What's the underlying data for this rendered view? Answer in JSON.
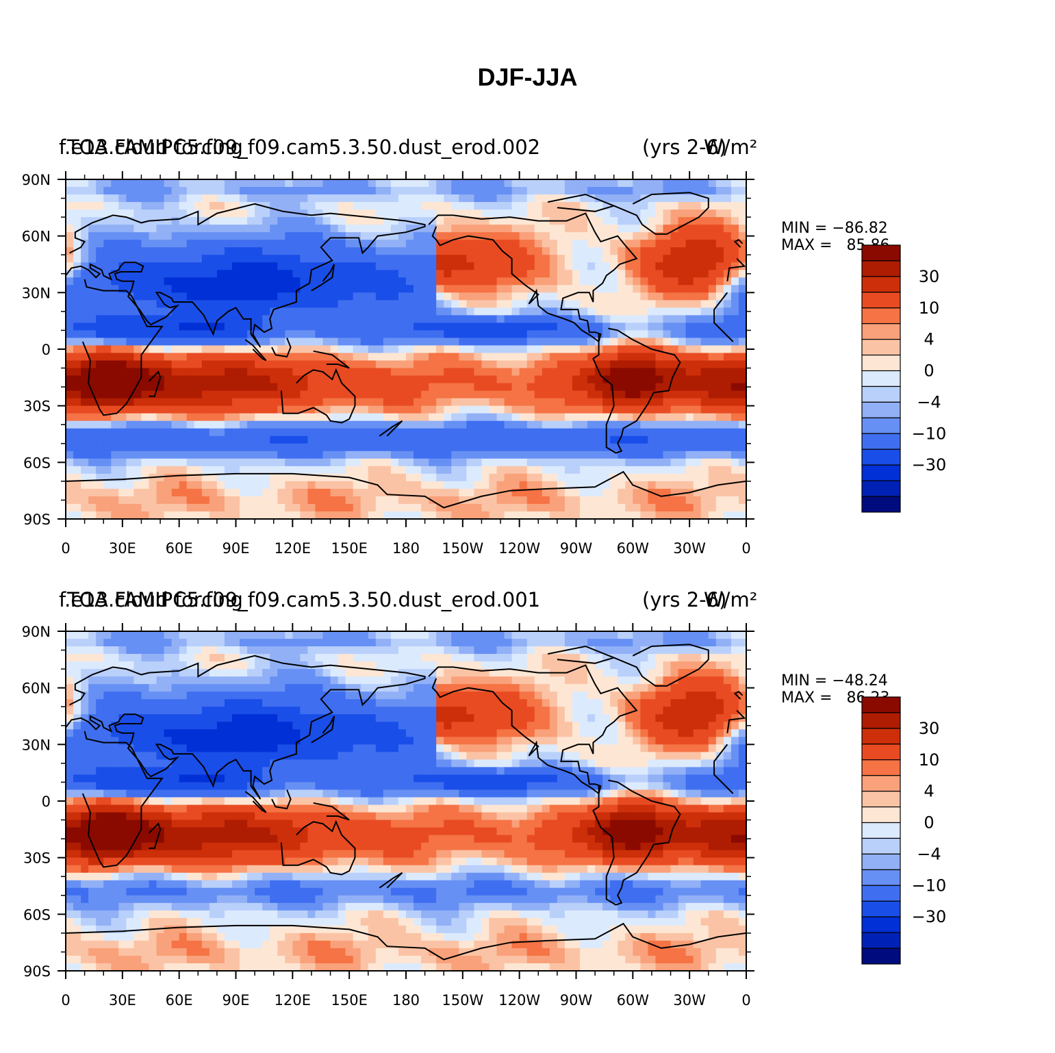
{
  "main_title": "DJF-JJA",
  "colors": {
    "levels": [
      "#000c7d",
      "#0021b5",
      "#0030d6",
      "#1a4ee8",
      "#3f6ff0",
      "#6790f4",
      "#91b0f6",
      "#b9d0fb",
      "#dceafd",
      "#fde6d4",
      "#fbc3a5",
      "#f9a17a",
      "#f57345",
      "#e84b22",
      "#cc2f09",
      "#ae1c02",
      "#8a0a00"
    ],
    "coast": "#000000",
    "axis": "#000000"
  },
  "chart_data": [
    {
      "type": "heatmap",
      "case_label": "f.e13.FAMIPC5.f09_f09.cam5.3.50.dust_erod.002",
      "variable_label": "TOA cloud forcing",
      "units_label": "W/m²",
      "years_label": "(yrs 2-6)",
      "overlap_text_left": "f.e13.FAMIPC5.f09_f09.cam5.3.50.dust_erod.002",
      "overlap_text_over": "TOA cloud forcing",
      "overlap_text_right": "(yrs",
      "overlap_text_units": "W/m",
      "overlap_text_units_sup": "2",
      "overlap_text_close": "6)",
      "min_label": "MIN = −86.82",
      "max_label": "MAX =   85.86",
      "levels": [
        -50,
        -40,
        -30,
        -20,
        -10,
        -6,
        -4,
        -2,
        0,
        2,
        4,
        6,
        10,
        20,
        30,
        40
      ],
      "colorbar_labels": [
        "30",
        "10",
        "4",
        "0",
        "−4",
        "−10",
        "−30"
      ],
      "x_ticks": [
        "0",
        "30E",
        "60E",
        "90E",
        "120E",
        "150E",
        "180",
        "150W",
        "120W",
        "90W",
        "60W",
        "30W",
        "0"
      ],
      "y_ticks": [
        "90N",
        "60N",
        "30N",
        "0",
        "30S",
        "60S",
        "90S"
      ],
      "xlim": [
        0,
        360
      ],
      "ylim": [
        -90,
        90
      ]
    },
    {
      "type": "heatmap",
      "case_label": "f.e13.FAMIPC5.f09_f09.cam5.3.50.dust_erod.001",
      "variable_label": "TOA cloud forcing",
      "units_label": "W/m²",
      "years_label": "(yrs 2-6)",
      "overlap_text_left": "f.e13.FAMIPC5.f09_f09.cam5.3.50.dust_erod.001",
      "overlap_text_over": "TOA cloud forcing",
      "overlap_text_right": "(yrs",
      "overlap_text_units": "W/m",
      "overlap_text_units_sup": "2",
      "overlap_text_close": "6)",
      "min_label": "MIN = −48.24",
      "max_label": "MAX =   86.23",
      "levels": [
        -50,
        -40,
        -30,
        -20,
        -10,
        -6,
        -4,
        -2,
        0,
        2,
        4,
        6,
        10,
        20,
        30,
        40
      ],
      "colorbar_labels": [
        "30",
        "10",
        "4",
        "0",
        "−4",
        "−10",
        "−30"
      ],
      "x_ticks": [
        "0",
        "30E",
        "60E",
        "90E",
        "120E",
        "150E",
        "180",
        "150W",
        "120W",
        "90W",
        "60W",
        "30W",
        "0"
      ],
      "y_ticks": [
        "90N",
        "60N",
        "30N",
        "0",
        "30S",
        "60S",
        "90S"
      ],
      "xlim": [
        0,
        360
      ],
      "ylim": [
        -90,
        90
      ]
    }
  ]
}
